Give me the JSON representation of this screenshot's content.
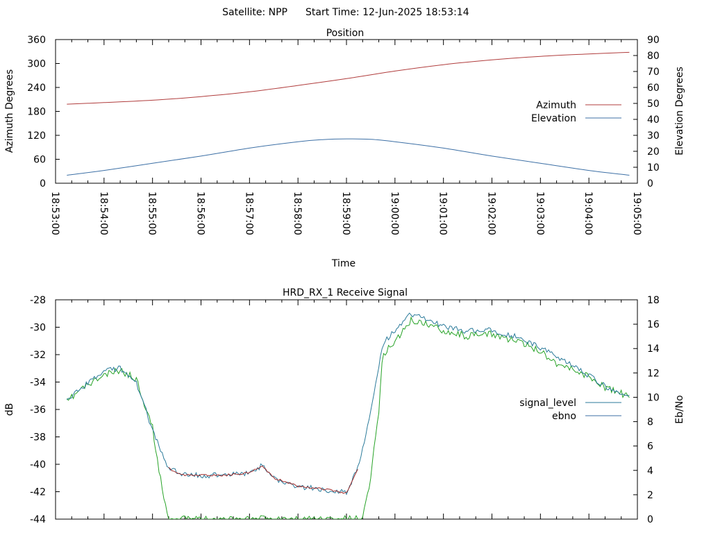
{
  "header": {
    "satellite_label": "Satellite: NPP",
    "start_time_label": "Start Time: 12-Jun-2025 18:53:14"
  },
  "colors": {
    "azimuth": "#b03c3c",
    "elevation": "#3c6fa5",
    "signal_level": "#2a7a9a",
    "ebno": "#27a327",
    "low_signal": "#a02c2c",
    "axis": "#000000"
  },
  "chart_data": [
    {
      "type": "line",
      "title": "Position",
      "xlabel": "Time",
      "ylabel": "Azimuth Degrees",
      "y2label": "Elevation Degrees",
      "grid": false,
      "legend_position": "right",
      "xlim": [
        "18:53:00",
        "19:05:00"
      ],
      "ylim": [
        0,
        360
      ],
      "y2lim": [
        0,
        90
      ],
      "x_ticks": [
        "18:53:00",
        "18:54:00",
        "18:55:00",
        "18:56:00",
        "18:57:00",
        "18:58:00",
        "18:59:00",
        "19:00:00",
        "19:01:00",
        "19:02:00",
        "19:03:00",
        "19:04:00",
        "19:05:00"
      ],
      "y_ticks": [
        "0",
        "60",
        "120",
        "180",
        "240",
        "300",
        "360"
      ],
      "y2_ticks": [
        "0",
        "10",
        "20",
        "30",
        "40",
        "50",
        "60",
        "70",
        "80",
        "90"
      ],
      "series": [
        {
          "name": "Azimuth",
          "axis": "left",
          "x": [
            "18:53:14",
            "18:54:00",
            "18:55:00",
            "18:56:00",
            "18:57:00",
            "18:58:00",
            "18:59:00",
            "19:00:00",
            "19:01:00",
            "19:02:00",
            "19:03:00",
            "19:04:00",
            "19:04:50"
          ],
          "values": [
            198,
            202,
            208,
            217,
            229,
            245,
            262,
            281,
            297,
            309,
            318,
            324,
            328
          ]
        },
        {
          "name": "Elevation",
          "axis": "right",
          "x": [
            "18:53:14",
            "18:54:00",
            "18:55:00",
            "18:56:00",
            "18:57:00",
            "18:58:00",
            "18:58:30",
            "18:59:00",
            "18:59:30",
            "19:00:00",
            "19:01:00",
            "19:02:00",
            "19:03:00",
            "19:04:00",
            "19:04:50"
          ],
          "values": [
            5,
            8,
            12.5,
            17,
            22,
            26,
            27.3,
            27.8,
            27.5,
            26,
            22,
            17,
            12.5,
            8,
            5
          ]
        }
      ]
    },
    {
      "type": "line",
      "title": "HRD_RX_1 Receive Signal",
      "xlabel": "",
      "ylabel": "dB",
      "y2label": "Eb/No",
      "grid": false,
      "legend_position": "right",
      "xlim": [
        "18:53:00",
        "19:05:00"
      ],
      "ylim": [
        -44,
        -28
      ],
      "y2lim": [
        0,
        18
      ],
      "y_ticks": [
        "-44",
        "-42",
        "-40",
        "-38",
        "-36",
        "-34",
        "-32",
        "-30",
        "-28"
      ],
      "y2_ticks": [
        "0",
        "2",
        "4",
        "6",
        "8",
        "10",
        "12",
        "14",
        "16",
        "18"
      ],
      "series": [
        {
          "name": "signal_level",
          "axis": "left",
          "x": [
            "18:53:14",
            "18:53:30",
            "18:54:00",
            "18:54:20",
            "18:54:40",
            "18:55:00",
            "18:55:20",
            "18:55:40",
            "18:56:00",
            "18:56:30",
            "18:57:00",
            "18:57:15",
            "18:57:30",
            "18:58:00",
            "18:58:30",
            "18:59:00",
            "18:59:15",
            "18:59:30",
            "18:59:45",
            "19:00:00",
            "19:00:20",
            "19:00:40",
            "19:01:00",
            "19:01:30",
            "19:02:00",
            "19:02:30",
            "19:03:00",
            "19:03:20",
            "19:03:40",
            "19:04:00",
            "19:04:20",
            "19:04:40",
            "19:04:50"
          ],
          "values": [
            -35.5,
            -34.5,
            -33.2,
            -33.0,
            -34.0,
            -37.5,
            -40.3,
            -40.8,
            -40.8,
            -40.8,
            -40.6,
            -40.1,
            -41.0,
            -41.6,
            -41.8,
            -42.1,
            -40.2,
            -36.0,
            -31.2,
            -30.2,
            -29.0,
            -29.5,
            -29.9,
            -30.3,
            -30.2,
            -30.7,
            -31.5,
            -32.2,
            -32.8,
            -33.5,
            -34.3,
            -34.8,
            -35.0
          ]
        },
        {
          "name": "ebno",
          "axis": "right",
          "x": [
            "18:53:14",
            "18:53:30",
            "18:54:00",
            "18:54:20",
            "18:54:40",
            "18:55:00",
            "18:55:10",
            "18:55:20",
            "18:55:40",
            "18:56:00",
            "18:56:30",
            "18:57:00",
            "18:57:30",
            "18:58:00",
            "18:58:30",
            "18:59:00",
            "18:59:10",
            "18:59:20",
            "18:59:30",
            "18:59:40",
            "18:59:45",
            "19:00:00",
            "19:00:20",
            "19:00:40",
            "19:01:00",
            "19:01:30",
            "19:02:00",
            "19:02:30",
            "19:03:00",
            "19:03:20",
            "19:03:40",
            "19:04:00",
            "19:04:20",
            "19:04:40",
            "19:04:50"
          ],
          "values": [
            9.6,
            10.6,
            11.8,
            12.2,
            11.5,
            7.5,
            3.2,
            0,
            0,
            0,
            0,
            0,
            0,
            0,
            0,
            0,
            0,
            0,
            3.5,
            9,
            13.5,
            14.6,
            16.3,
            16.0,
            15.5,
            15.0,
            15.2,
            14.6,
            13.8,
            12.8,
            12.3,
            11.7,
            10.8,
            10.3,
            10.0
          ]
        }
      ]
    }
  ]
}
